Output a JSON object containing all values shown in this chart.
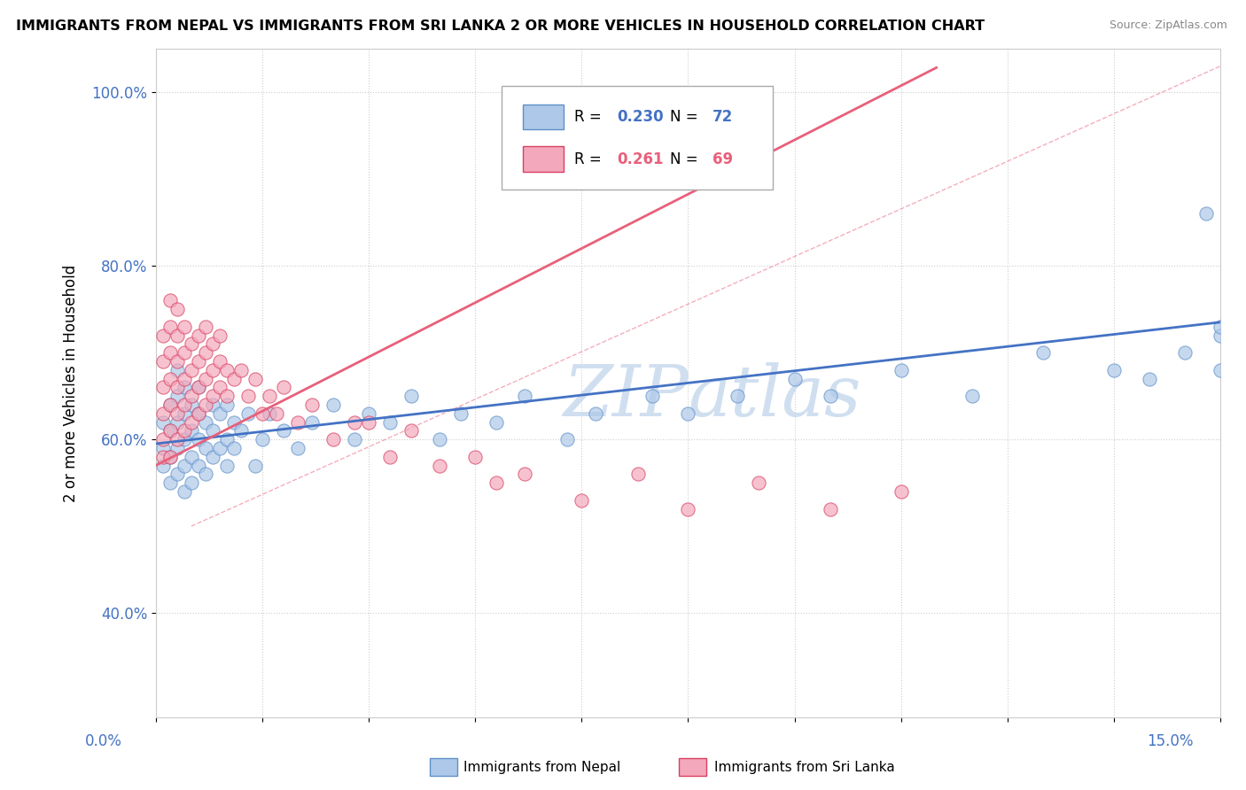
{
  "title": "IMMIGRANTS FROM NEPAL VS IMMIGRANTS FROM SRI LANKA 2 OR MORE VEHICLES IN HOUSEHOLD CORRELATION CHART",
  "source": "Source: ZipAtlas.com",
  "ylabel": "2 or more Vehicles in Household",
  "xrange": [
    0.0,
    0.15
  ],
  "yrange": [
    0.28,
    1.05
  ],
  "nepal_R": 0.23,
  "nepal_N": 72,
  "srilanka_R": 0.261,
  "srilanka_N": 69,
  "nepal_color": "#adc8e8",
  "srilanka_color": "#f4a8bc",
  "nepal_line_color": "#4472c4",
  "srilanka_line_color": "#e8607a",
  "nepal_edge_color": "#6090c8",
  "srilanka_edge_color": "#d84060",
  "watermark_color": "#d0dff0",
  "nepal_x": [
    0.001,
    0.001,
    0.001,
    0.002,
    0.002,
    0.002,
    0.002,
    0.003,
    0.003,
    0.003,
    0.003,
    0.003,
    0.004,
    0.004,
    0.004,
    0.004,
    0.004,
    0.005,
    0.005,
    0.005,
    0.005,
    0.006,
    0.006,
    0.006,
    0.006,
    0.007,
    0.007,
    0.007,
    0.008,
    0.008,
    0.008,
    0.009,
    0.009,
    0.01,
    0.01,
    0.01,
    0.011,
    0.011,
    0.012,
    0.013,
    0.014,
    0.015,
    0.016,
    0.018,
    0.02,
    0.022,
    0.025,
    0.028,
    0.03,
    0.033,
    0.036,
    0.04,
    0.043,
    0.048,
    0.052,
    0.058,
    0.062,
    0.07,
    0.075,
    0.082,
    0.09,
    0.095,
    0.105,
    0.115,
    0.125,
    0.135,
    0.14,
    0.145,
    0.148,
    0.15,
    0.15,
    0.15
  ],
  "nepal_y": [
    0.57,
    0.59,
    0.62,
    0.55,
    0.58,
    0.61,
    0.64,
    0.56,
    0.59,
    0.62,
    0.65,
    0.68,
    0.54,
    0.57,
    0.6,
    0.63,
    0.66,
    0.55,
    0.58,
    0.61,
    0.64,
    0.57,
    0.6,
    0.63,
    0.66,
    0.56,
    0.59,
    0.62,
    0.58,
    0.61,
    0.64,
    0.59,
    0.63,
    0.57,
    0.6,
    0.64,
    0.59,
    0.62,
    0.61,
    0.63,
    0.57,
    0.6,
    0.63,
    0.61,
    0.59,
    0.62,
    0.64,
    0.6,
    0.63,
    0.62,
    0.65,
    0.6,
    0.63,
    0.62,
    0.65,
    0.6,
    0.63,
    0.65,
    0.63,
    0.65,
    0.67,
    0.65,
    0.68,
    0.65,
    0.7,
    0.68,
    0.67,
    0.7,
    0.86,
    0.72,
    0.68,
    0.73
  ],
  "srilanka_x": [
    0.001,
    0.001,
    0.001,
    0.001,
    0.001,
    0.001,
    0.002,
    0.002,
    0.002,
    0.002,
    0.002,
    0.002,
    0.002,
    0.003,
    0.003,
    0.003,
    0.003,
    0.003,
    0.003,
    0.004,
    0.004,
    0.004,
    0.004,
    0.004,
    0.005,
    0.005,
    0.005,
    0.005,
    0.006,
    0.006,
    0.006,
    0.006,
    0.007,
    0.007,
    0.007,
    0.007,
    0.008,
    0.008,
    0.008,
    0.009,
    0.009,
    0.009,
    0.01,
    0.01,
    0.011,
    0.012,
    0.013,
    0.014,
    0.015,
    0.016,
    0.017,
    0.018,
    0.02,
    0.022,
    0.025,
    0.028,
    0.03,
    0.033,
    0.036,
    0.04,
    0.045,
    0.048,
    0.052,
    0.06,
    0.068,
    0.075,
    0.085,
    0.095,
    0.105
  ],
  "srilanka_y": [
    0.58,
    0.6,
    0.63,
    0.66,
    0.69,
    0.72,
    0.58,
    0.61,
    0.64,
    0.67,
    0.7,
    0.73,
    0.76,
    0.6,
    0.63,
    0.66,
    0.69,
    0.72,
    0.75,
    0.61,
    0.64,
    0.67,
    0.7,
    0.73,
    0.62,
    0.65,
    0.68,
    0.71,
    0.63,
    0.66,
    0.69,
    0.72,
    0.64,
    0.67,
    0.7,
    0.73,
    0.65,
    0.68,
    0.71,
    0.66,
    0.69,
    0.72,
    0.65,
    0.68,
    0.67,
    0.68,
    0.65,
    0.67,
    0.63,
    0.65,
    0.63,
    0.66,
    0.62,
    0.64,
    0.6,
    0.62,
    0.62,
    0.58,
    0.61,
    0.57,
    0.58,
    0.55,
    0.56,
    0.53,
    0.56,
    0.52,
    0.55,
    0.52,
    0.54
  ],
  "diag_line": true
}
